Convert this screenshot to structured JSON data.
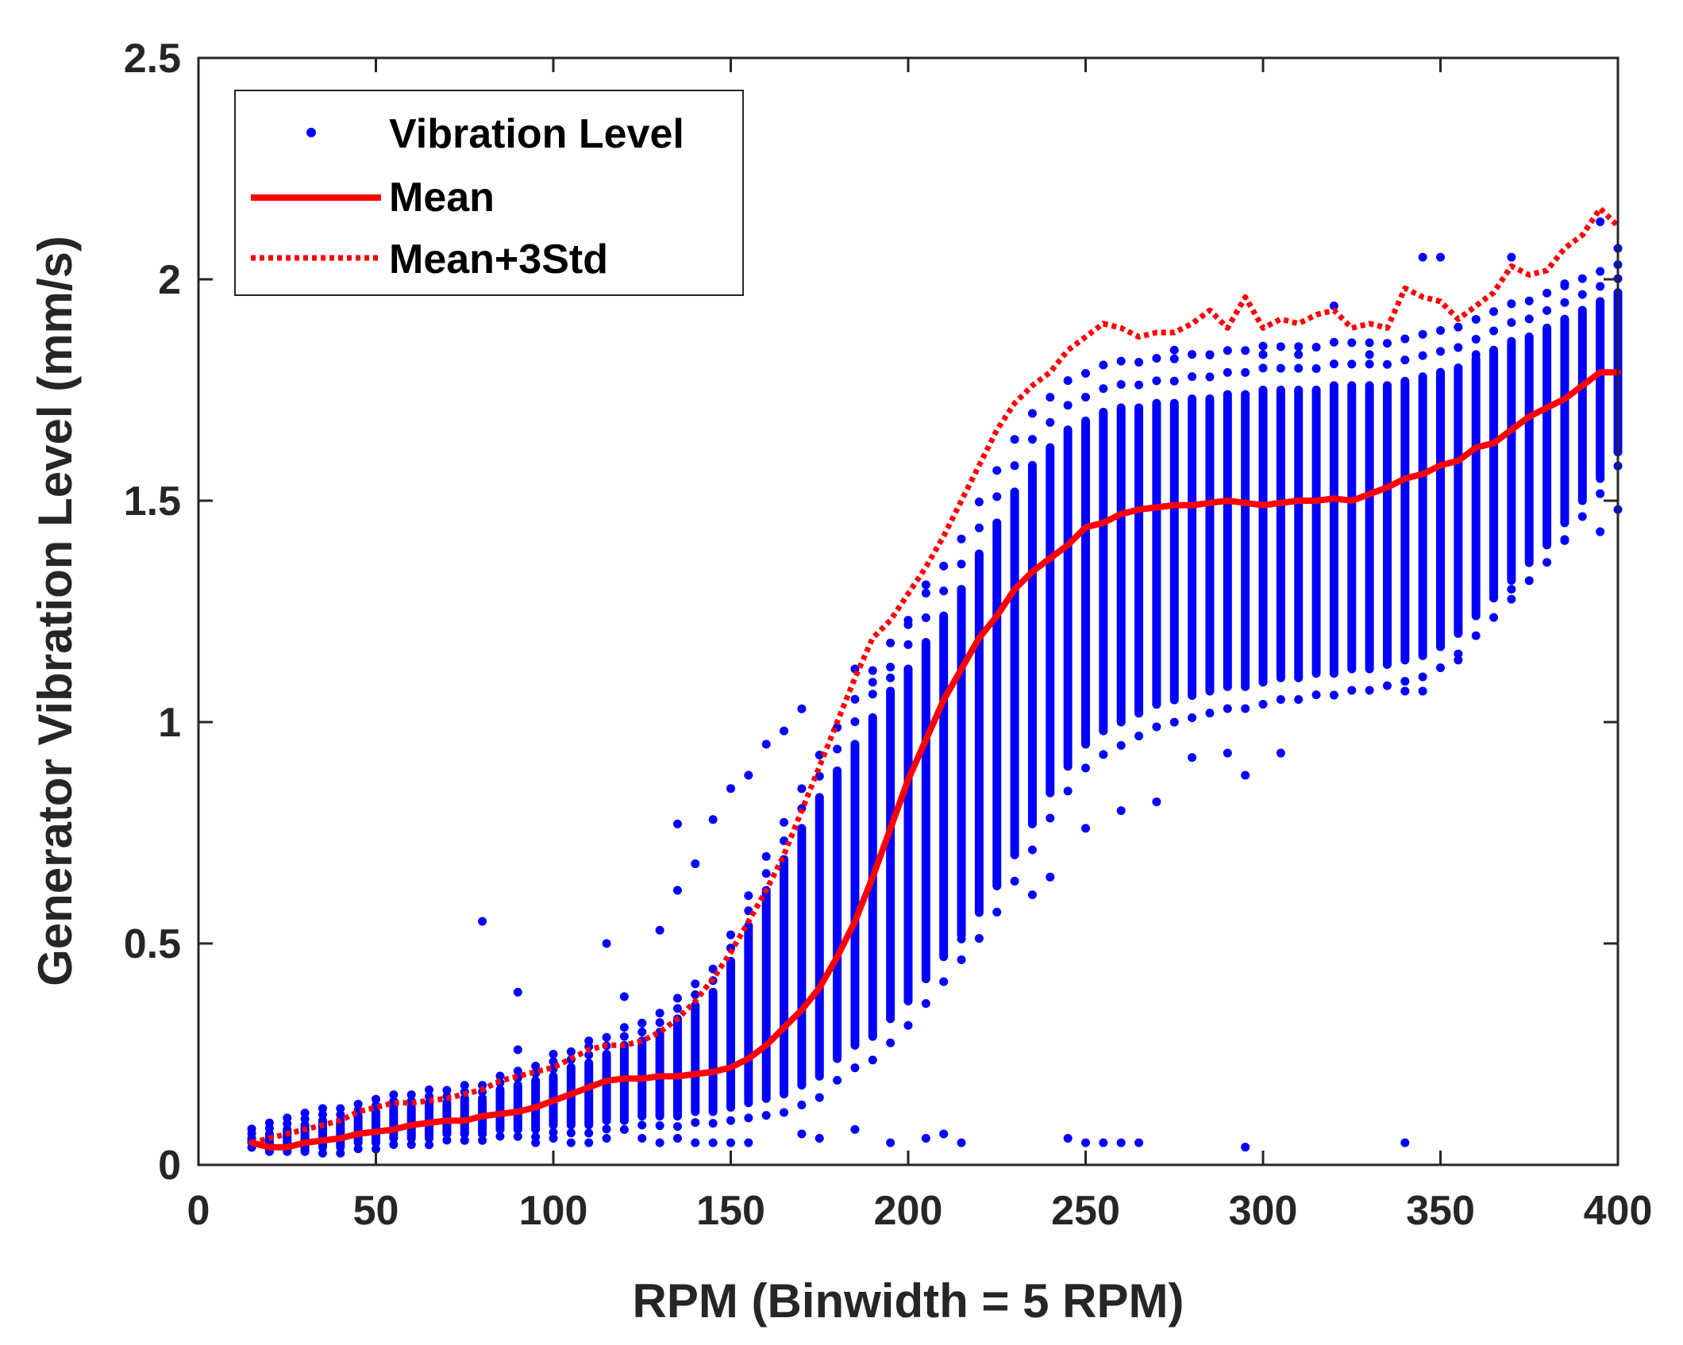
{
  "colors": {
    "points": "#0000ff",
    "mean": "#ff0000",
    "mean_plus_3std": "#ff0000",
    "axes": "#262626",
    "background": "#ffffff"
  },
  "chart_data": {
    "type": "scatter",
    "title": "",
    "xlabel": "RPM (Binwidth = 5 RPM)",
    "ylabel": "Generator Vibration Level (mm/s)",
    "xlim": [
      0,
      400
    ],
    "ylim": [
      0,
      2.5
    ],
    "x_ticks": [
      0,
      50,
      100,
      150,
      200,
      250,
      300,
      350,
      400
    ],
    "x_tick_labels": [
      "0",
      "50",
      "100",
      "150",
      "200",
      "250",
      "300",
      "350",
      "400"
    ],
    "y_ticks": [
      0,
      0.5,
      1,
      1.5,
      2,
      2.5
    ],
    "y_tick_labels": [
      "0",
      "0.5",
      "1",
      "1.5",
      "2",
      "2.5"
    ],
    "grid": false,
    "legend_position": "top-left",
    "legend": [
      "Vibration Level",
      "Mean",
      "Mean+3Std"
    ],
    "bins": {
      "rpm": [
        15,
        20,
        25,
        30,
        35,
        40,
        45,
        50,
        55,
        60,
        65,
        70,
        75,
        80,
        85,
        90,
        95,
        100,
        105,
        110,
        115,
        120,
        125,
        130,
        135,
        140,
        145,
        150,
        155,
        160,
        165,
        170,
        175,
        180,
        185,
        190,
        195,
        200,
        205,
        210,
        215,
        220,
        225,
        230,
        235,
        240,
        245,
        250,
        255,
        260,
        265,
        270,
        275,
        280,
        285,
        290,
        295,
        300,
        305,
        310,
        315,
        320,
        325,
        330,
        335,
        340,
        345,
        350,
        355,
        360,
        365,
        370,
        375,
        380,
        385,
        390,
        395,
        400
      ],
      "dense_low": [
        0.05,
        0.03,
        0.03,
        0.03,
        0.04,
        0.04,
        0.05,
        0.05,
        0.06,
        0.06,
        0.06,
        0.07,
        0.07,
        0.07,
        0.08,
        0.08,
        0.08,
        0.09,
        0.09,
        0.09,
        0.1,
        0.1,
        0.11,
        0.11,
        0.11,
        0.12,
        0.12,
        0.13,
        0.14,
        0.15,
        0.16,
        0.18,
        0.2,
        0.24,
        0.27,
        0.29,
        0.33,
        0.37,
        0.42,
        0.47,
        0.52,
        0.57,
        0.63,
        0.7,
        0.77,
        0.84,
        0.9,
        0.95,
        0.98,
        1.0,
        1.02,
        1.04,
        1.05,
        1.06,
        1.07,
        1.08,
        1.08,
        1.09,
        1.1,
        1.1,
        1.11,
        1.11,
        1.12,
        1.12,
        1.13,
        1.14,
        1.15,
        1.17,
        1.2,
        1.24,
        1.28,
        1.32,
        1.36,
        1.4,
        1.45,
        1.5,
        1.55,
        1.61
      ],
      "dense_high": [
        0.06,
        0.07,
        0.08,
        0.09,
        0.1,
        0.1,
        0.11,
        0.12,
        0.13,
        0.13,
        0.14,
        0.14,
        0.15,
        0.15,
        0.17,
        0.18,
        0.19,
        0.2,
        0.22,
        0.23,
        0.25,
        0.27,
        0.28,
        0.3,
        0.33,
        0.36,
        0.39,
        0.46,
        0.54,
        0.62,
        0.69,
        0.76,
        0.83,
        0.89,
        0.95,
        1.01,
        1.07,
        1.12,
        1.18,
        1.24,
        1.3,
        1.38,
        1.45,
        1.52,
        1.58,
        1.62,
        1.66,
        1.68,
        1.7,
        1.71,
        1.71,
        1.72,
        1.72,
        1.73,
        1.73,
        1.74,
        1.74,
        1.75,
        1.75,
        1.75,
        1.75,
        1.76,
        1.76,
        1.76,
        1.76,
        1.77,
        1.78,
        1.79,
        1.8,
        1.82,
        1.84,
        1.86,
        1.87,
        1.89,
        1.91,
        1.93,
        1.95,
        1.97
      ],
      "mean": [
        0.05,
        0.04,
        0.04,
        0.05,
        0.055,
        0.06,
        0.07,
        0.075,
        0.08,
        0.09,
        0.095,
        0.1,
        0.1,
        0.11,
        0.115,
        0.12,
        0.13,
        0.145,
        0.16,
        0.175,
        0.19,
        0.195,
        0.195,
        0.2,
        0.2,
        0.205,
        0.21,
        0.22,
        0.24,
        0.27,
        0.31,
        0.35,
        0.4,
        0.47,
        0.55,
        0.65,
        0.76,
        0.87,
        0.96,
        1.05,
        1.12,
        1.19,
        1.24,
        1.3,
        1.34,
        1.37,
        1.4,
        1.44,
        1.45,
        1.47,
        1.48,
        1.485,
        1.49,
        1.49,
        1.495,
        1.5,
        1.495,
        1.49,
        1.495,
        1.5,
        1.5,
        1.505,
        1.5,
        1.515,
        1.53,
        1.55,
        1.56,
        1.58,
        1.59,
        1.62,
        1.63,
        1.66,
        1.69,
        1.71,
        1.73,
        1.76,
        1.79,
        1.79
      ],
      "mean_plus_3std": [
        0.05,
        0.06,
        0.07,
        0.08,
        0.09,
        0.1,
        0.12,
        0.13,
        0.14,
        0.14,
        0.145,
        0.15,
        0.16,
        0.17,
        0.19,
        0.2,
        0.21,
        0.22,
        0.24,
        0.26,
        0.27,
        0.27,
        0.28,
        0.3,
        0.33,
        0.37,
        0.42,
        0.48,
        0.55,
        0.62,
        0.7,
        0.8,
        0.9,
        1.0,
        1.1,
        1.19,
        1.23,
        1.29,
        1.35,
        1.42,
        1.5,
        1.58,
        1.66,
        1.72,
        1.76,
        1.79,
        1.84,
        1.87,
        1.9,
        1.89,
        1.87,
        1.88,
        1.88,
        1.9,
        1.93,
        1.89,
        1.96,
        1.89,
        1.91,
        1.9,
        1.92,
        1.93,
        1.89,
        1.9,
        1.89,
        1.98,
        1.96,
        1.95,
        1.91,
        1.94,
        1.97,
        2.03,
        2.01,
        2.02,
        2.07,
        2.1,
        2.16,
        2.12
      ],
      "outliers": [
        [
          80,
          0.55
        ],
        [
          90,
          0.39
        ],
        [
          90,
          0.26
        ],
        [
          100,
          0.25
        ],
        [
          110,
          0.28
        ],
        [
          115,
          0.5
        ],
        [
          120,
          0.38
        ],
        [
          125,
          0.32
        ],
        [
          130,
          0.53
        ],
        [
          135,
          0.77
        ],
        [
          135,
          0.62
        ],
        [
          140,
          0.68
        ],
        [
          145,
          0.78
        ],
        [
          150,
          0.85
        ],
        [
          155,
          0.88
        ],
        [
          160,
          0.95
        ],
        [
          165,
          0.98
        ],
        [
          170,
          1.03
        ],
        [
          185,
          1.12
        ],
        [
          190,
          1.09
        ],
        [
          195,
          1.1
        ],
        [
          200,
          1.22
        ],
        [
          205,
          1.31
        ],
        [
          215,
          0.51
        ],
        [
          225,
          0.64
        ],
        [
          230,
          0.73
        ],
        [
          235,
          0.61
        ],
        [
          240,
          0.65
        ],
        [
          250,
          0.76
        ],
        [
          260,
          0.8
        ],
        [
          270,
          0.82
        ],
        [
          280,
          0.92
        ],
        [
          290,
          0.93
        ],
        [
          295,
          0.88
        ],
        [
          305,
          0.93
        ],
        [
          340,
          1.07
        ],
        [
          345,
          1.07
        ],
        [
          355,
          1.14
        ],
        [
          360,
          1.3
        ],
        [
          370,
          1.3
        ],
        [
          385,
          1.41
        ],
        [
          395,
          1.43
        ],
        [
          400,
          1.48
        ],
        [
          275,
          1.84
        ],
        [
          285,
          1.83
        ],
        [
          300,
          1.83
        ],
        [
          310,
          1.83
        ],
        [
          320,
          1.94
        ],
        [
          330,
          1.83
        ],
        [
          345,
          2.05
        ],
        [
          350,
          2.05
        ],
        [
          360,
          1.83
        ],
        [
          370,
          2.05
        ],
        [
          385,
          1.99
        ],
        [
          395,
          2.13
        ],
        [
          400,
          2.07
        ],
        [
          95,
          0.05
        ],
        [
          100,
          0.06
        ],
        [
          105,
          0.05
        ],
        [
          110,
          0.05
        ],
        [
          115,
          0.06
        ],
        [
          125,
          0.06
        ],
        [
          130,
          0.05
        ],
        [
          135,
          0.06
        ],
        [
          140,
          0.05
        ],
        [
          145,
          0.05
        ],
        [
          150,
          0.05
        ],
        [
          155,
          0.05
        ],
        [
          170,
          0.07
        ],
        [
          175,
          0.06
        ],
        [
          185,
          0.08
        ],
        [
          195,
          0.05
        ],
        [
          205,
          0.06
        ],
        [
          210,
          0.07
        ],
        [
          215,
          0.05
        ],
        [
          245,
          0.06
        ],
        [
          250,
          0.05
        ],
        [
          255,
          0.05
        ],
        [
          260,
          0.05
        ],
        [
          265,
          0.05
        ],
        [
          295,
          0.04
        ],
        [
          340,
          0.05
        ]
      ]
    },
    "series": [
      {
        "name": "Vibration Level",
        "style": "blue dots"
      },
      {
        "name": "Mean",
        "style": "solid red line"
      },
      {
        "name": "Mean+3Std",
        "style": "dotted red line"
      }
    ]
  }
}
